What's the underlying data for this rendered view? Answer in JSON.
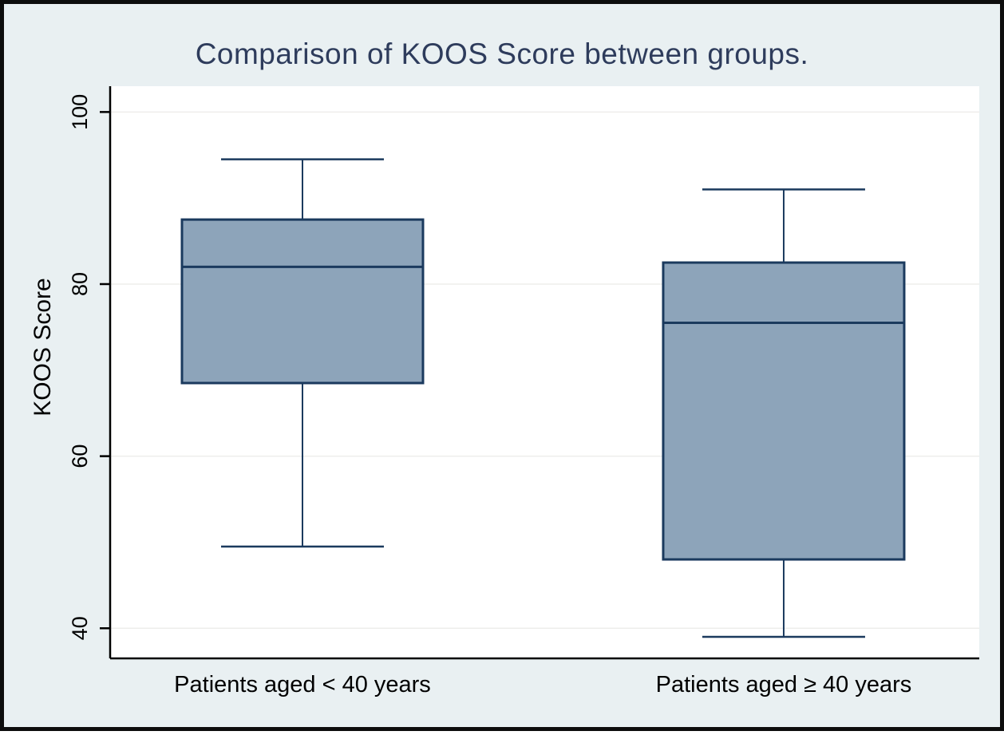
{
  "figure": {
    "title": "Comparison of KOOS Score between groups.",
    "ylabel": "KOOS Score"
  },
  "chart_data": {
    "type": "box",
    "title": "Comparison of KOOS Score between groups.",
    "ylabel": "KOOS Score",
    "xlabel": "",
    "categories": [
      "Patients aged < 40 years",
      "Patients aged ≥ 40 years"
    ],
    "yticks": [
      40,
      60,
      80,
      100
    ],
    "ylim": [
      36.5,
      103
    ],
    "grid": true,
    "legend": "none",
    "series": [
      {
        "name": "Patients aged < 40 years",
        "whisker_low": 49.5,
        "q1": 68.5,
        "median": 82,
        "q3": 87.5,
        "whisker_high": 94.5
      },
      {
        "name": "Patients aged ≥ 40 years",
        "whisker_low": 39,
        "q1": 48,
        "median": 75.5,
        "q3": 82.5,
        "whisker_high": 91
      }
    ],
    "colors": {
      "box_fill": "#8da4ba",
      "box_border": "#1b3a5e",
      "whisker": "#1b3a5e",
      "title": "#2e3c5c",
      "axis": "#000000",
      "tick_label": "#000000",
      "category_label": "#000000",
      "grid": "#eeedeb",
      "plot_background": "#ffffff",
      "figure_background": "#e9f0f2",
      "frame": "#0d0d0d"
    }
  }
}
